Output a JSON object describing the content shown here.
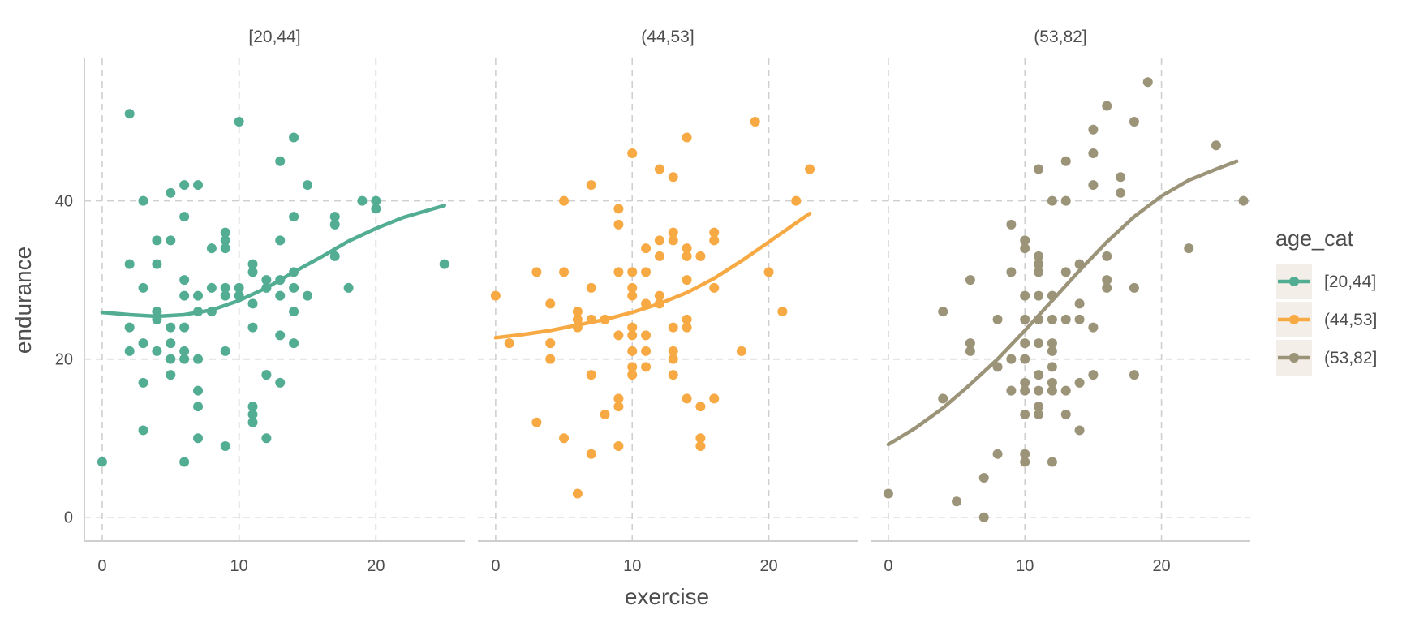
{
  "chart_data": {
    "type": "scatter",
    "facet_variable": "age_cat",
    "xlabel": "exercise",
    "ylabel": "endurance",
    "xlim": [
      -1.3,
      26.5
    ],
    "ylim": [
      -3,
      58
    ],
    "x_ticks": [
      0,
      10,
      20
    ],
    "y_ticks": [
      0,
      20,
      40
    ],
    "grid": true,
    "grid_style": "dashed",
    "legend": {
      "title": "age_cat",
      "position": "right",
      "entries": [
        "[20,44]",
        "(44,53]",
        "(53,82]"
      ]
    },
    "panels": [
      {
        "name": "[20,44]",
        "color": "#52AD93",
        "points": [
          [
            0,
            7
          ],
          [
            2,
            51
          ],
          [
            2,
            32
          ],
          [
            2,
            24
          ],
          [
            2,
            21
          ],
          [
            3,
            40
          ],
          [
            3,
            29
          ],
          [
            3,
            22
          ],
          [
            3,
            17
          ],
          [
            3,
            11
          ],
          [
            4,
            35
          ],
          [
            4,
            32
          ],
          [
            4,
            26
          ],
          [
            4,
            25
          ],
          [
            4,
            21
          ],
          [
            5,
            41
          ],
          [
            5,
            35
          ],
          [
            5,
            24
          ],
          [
            5,
            22
          ],
          [
            5,
            20
          ],
          [
            5,
            18
          ],
          [
            6,
            42
          ],
          [
            6,
            38
          ],
          [
            6,
            30
          ],
          [
            6,
            28
          ],
          [
            6,
            24
          ],
          [
            6,
            21
          ],
          [
            6,
            20
          ],
          [
            6,
            7
          ],
          [
            7,
            42
          ],
          [
            7,
            28
          ],
          [
            7,
            26
          ],
          [
            7,
            20
          ],
          [
            7,
            16
          ],
          [
            7,
            14
          ],
          [
            7,
            10
          ],
          [
            8,
            34
          ],
          [
            8,
            29
          ],
          [
            8,
            26
          ],
          [
            9,
            36
          ],
          [
            9,
            35
          ],
          [
            9,
            34
          ],
          [
            9,
            29
          ],
          [
            9,
            28
          ],
          [
            9,
            21
          ],
          [
            9,
            9
          ],
          [
            10,
            50
          ],
          [
            10,
            29
          ],
          [
            10,
            28
          ],
          [
            11,
            32
          ],
          [
            11,
            31
          ],
          [
            11,
            27
          ],
          [
            11,
            24
          ],
          [
            11,
            14
          ],
          [
            11,
            13
          ],
          [
            11,
            12
          ],
          [
            12,
            30
          ],
          [
            12,
            29
          ],
          [
            12,
            18
          ],
          [
            12,
            10
          ],
          [
            13,
            45
          ],
          [
            13,
            35
          ],
          [
            13,
            30
          ],
          [
            13,
            28
          ],
          [
            13,
            23
          ],
          [
            13,
            17
          ],
          [
            14,
            48
          ],
          [
            14,
            38
          ],
          [
            14,
            31
          ],
          [
            14,
            29
          ],
          [
            14,
            26
          ],
          [
            14,
            22
          ],
          [
            15,
            42
          ],
          [
            15,
            28
          ],
          [
            17,
            38
          ],
          [
            17,
            37
          ],
          [
            17,
            33
          ],
          [
            18,
            29
          ],
          [
            19,
            40
          ],
          [
            20,
            40
          ],
          [
            20,
            39
          ],
          [
            25,
            32
          ]
        ],
        "trend": [
          [
            0,
            25.9
          ],
          [
            2,
            25.6
          ],
          [
            4,
            25.4
          ],
          [
            6,
            25.6
          ],
          [
            8,
            26.2
          ],
          [
            10,
            27.4
          ],
          [
            12,
            29.0
          ],
          [
            14,
            31.0
          ],
          [
            16,
            32.9
          ],
          [
            18,
            34.9
          ],
          [
            20,
            36.5
          ],
          [
            22,
            37.9
          ],
          [
            25,
            39.4
          ]
        ]
      },
      {
        "name": "(44,53]",
        "color": "#F7A943",
        "points": [
          [
            0,
            28
          ],
          [
            1,
            22
          ],
          [
            3,
            31
          ],
          [
            3,
            12
          ],
          [
            4,
            27
          ],
          [
            4,
            22
          ],
          [
            4,
            20
          ],
          [
            5,
            40
          ],
          [
            5,
            31
          ],
          [
            5,
            10
          ],
          [
            6,
            26
          ],
          [
            6,
            25
          ],
          [
            6,
            24
          ],
          [
            6,
            3
          ],
          [
            7,
            42
          ],
          [
            7,
            29
          ],
          [
            7,
            25
          ],
          [
            7,
            18
          ],
          [
            7,
            8
          ],
          [
            8,
            25
          ],
          [
            8,
            13
          ],
          [
            9,
            39
          ],
          [
            9,
            37
          ],
          [
            9,
            31
          ],
          [
            9,
            23
          ],
          [
            9,
            15
          ],
          [
            9,
            14
          ],
          [
            9,
            9
          ],
          [
            10,
            46
          ],
          [
            10,
            31
          ],
          [
            10,
            29
          ],
          [
            10,
            28
          ],
          [
            10,
            24
          ],
          [
            10,
            23
          ],
          [
            10,
            21
          ],
          [
            10,
            19
          ],
          [
            10,
            18
          ],
          [
            11,
            34
          ],
          [
            11,
            31
          ],
          [
            11,
            27
          ],
          [
            11,
            23
          ],
          [
            11,
            21
          ],
          [
            11,
            19
          ],
          [
            12,
            44
          ],
          [
            12,
            35
          ],
          [
            12,
            33
          ],
          [
            12,
            28
          ],
          [
            12,
            27
          ],
          [
            13,
            43
          ],
          [
            13,
            36
          ],
          [
            13,
            35
          ],
          [
            13,
            24
          ],
          [
            13,
            21
          ],
          [
            13,
            20
          ],
          [
            13,
            18
          ],
          [
            14,
            48
          ],
          [
            14,
            34
          ],
          [
            14,
            33
          ],
          [
            14,
            30
          ],
          [
            14,
            25
          ],
          [
            14,
            24
          ],
          [
            14,
            15
          ],
          [
            15,
            33
          ],
          [
            15,
            14
          ],
          [
            15,
            10
          ],
          [
            15,
            9
          ],
          [
            16,
            36
          ],
          [
            16,
            35
          ],
          [
            16,
            29
          ],
          [
            16,
            15
          ],
          [
            18,
            21
          ],
          [
            19,
            50
          ],
          [
            20,
            31
          ],
          [
            21,
            26
          ],
          [
            22,
            40
          ],
          [
            23,
            44
          ]
        ],
        "trend": [
          [
            0,
            22.7
          ],
          [
            2,
            23.1
          ],
          [
            4,
            23.6
          ],
          [
            6,
            24.3
          ],
          [
            8,
            25.0
          ],
          [
            10,
            25.9
          ],
          [
            12,
            27.0
          ],
          [
            14,
            28.4
          ],
          [
            16,
            30.2
          ],
          [
            18,
            32.4
          ],
          [
            20,
            34.8
          ],
          [
            22,
            37.2
          ],
          [
            23,
            38.4
          ]
        ]
      },
      {
        "name": "(53,82]",
        "color": "#9B9478",
        "points": [
          [
            0,
            3
          ],
          [
            4,
            26
          ],
          [
            4,
            15
          ],
          [
            5,
            2
          ],
          [
            6,
            30
          ],
          [
            6,
            22
          ],
          [
            6,
            21
          ],
          [
            7,
            5
          ],
          [
            7,
            0
          ],
          [
            8,
            25
          ],
          [
            8,
            19
          ],
          [
            8,
            8
          ],
          [
            9,
            37
          ],
          [
            9,
            31
          ],
          [
            9,
            20
          ],
          [
            9,
            16
          ],
          [
            10,
            35
          ],
          [
            10,
            34
          ],
          [
            10,
            28
          ],
          [
            10,
            25
          ],
          [
            10,
            22
          ],
          [
            10,
            20
          ],
          [
            10,
            17
          ],
          [
            10,
            16
          ],
          [
            10,
            13
          ],
          [
            10,
            8
          ],
          [
            10,
            7
          ],
          [
            11,
            44
          ],
          [
            11,
            33
          ],
          [
            11,
            32
          ],
          [
            11,
            31
          ],
          [
            11,
            28
          ],
          [
            11,
            25
          ],
          [
            11,
            22
          ],
          [
            11,
            18
          ],
          [
            11,
            16
          ],
          [
            11,
            14
          ],
          [
            11,
            13
          ],
          [
            12,
            40
          ],
          [
            12,
            28
          ],
          [
            12,
            25
          ],
          [
            12,
            22
          ],
          [
            12,
            21
          ],
          [
            12,
            19
          ],
          [
            12,
            17
          ],
          [
            12,
            16
          ],
          [
            12,
            7
          ],
          [
            13,
            45
          ],
          [
            13,
            40
          ],
          [
            13,
            31
          ],
          [
            13,
            25
          ],
          [
            13,
            16
          ],
          [
            13,
            13
          ],
          [
            14,
            32
          ],
          [
            14,
            27
          ],
          [
            14,
            25
          ],
          [
            14,
            17
          ],
          [
            14,
            11
          ],
          [
            15,
            49
          ],
          [
            15,
            46
          ],
          [
            15,
            42
          ],
          [
            15,
            24
          ],
          [
            15,
            18
          ],
          [
            16,
            52
          ],
          [
            16,
            33
          ],
          [
            16,
            30
          ],
          [
            16,
            29
          ],
          [
            17,
            43
          ],
          [
            17,
            41
          ],
          [
            18,
            50
          ],
          [
            18,
            29
          ],
          [
            18,
            18
          ],
          [
            19,
            55
          ],
          [
            22,
            34
          ],
          [
            24,
            47
          ],
          [
            26,
            40
          ]
        ],
        "trend": [
          [
            0,
            9.2
          ],
          [
            2,
            11.3
          ],
          [
            4,
            13.8
          ],
          [
            6,
            16.8
          ],
          [
            8,
            20.0
          ],
          [
            10,
            23.6
          ],
          [
            12,
            27.4
          ],
          [
            14,
            31.2
          ],
          [
            16,
            34.8
          ],
          [
            18,
            38.0
          ],
          [
            20,
            40.6
          ],
          [
            22,
            42.6
          ],
          [
            24,
            44.0
          ],
          [
            25.5,
            45.0
          ]
        ]
      }
    ]
  }
}
